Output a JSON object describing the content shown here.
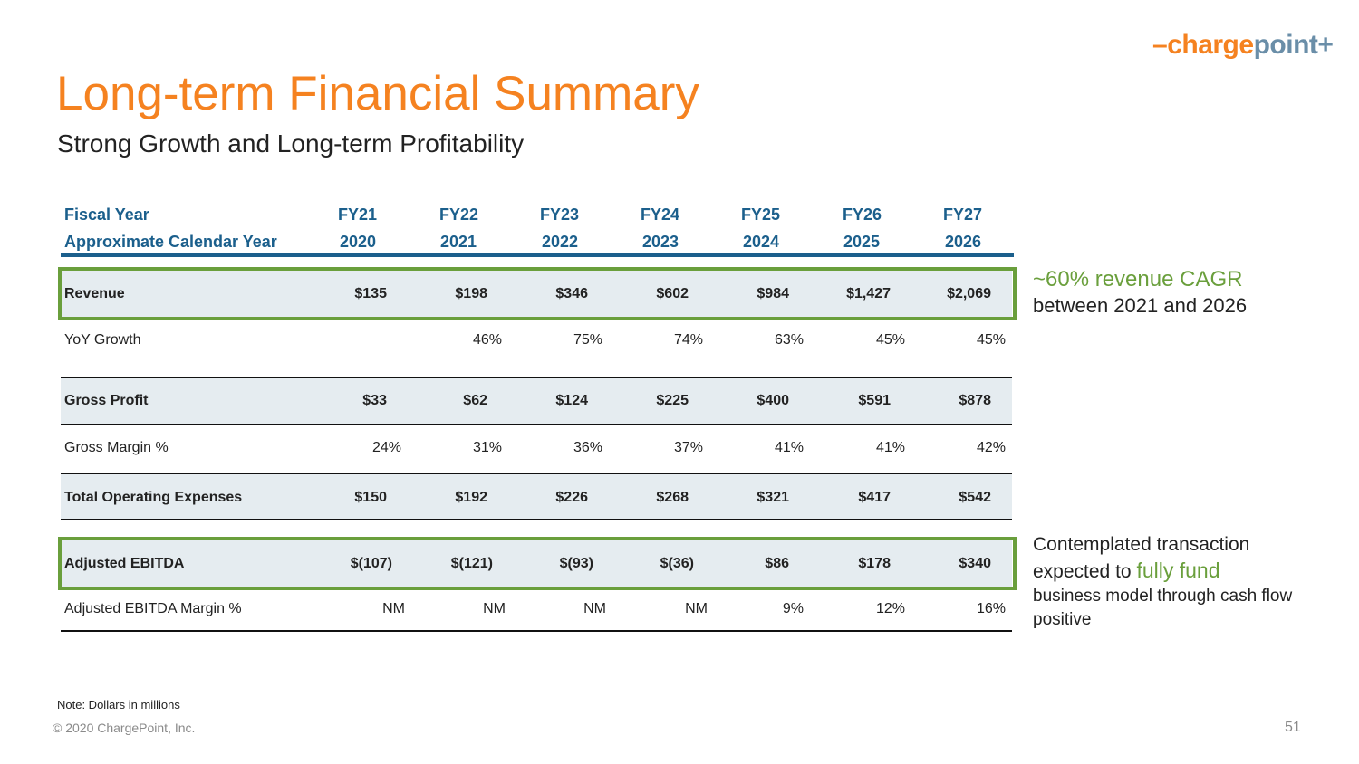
{
  "logo": {
    "dash": "–",
    "charge": "charge",
    "point": "poin",
    "plus": "t+"
  },
  "title": "Long-term Financial Summary",
  "subtitle": "Strong Growth and Long-term Profitability",
  "table": {
    "fiscal_year_label": "Fiscal Year",
    "calendar_year_label": "Approximate Calendar Year",
    "fiscal_years": [
      "FY21",
      "FY22",
      "FY23",
      "FY24",
      "FY25",
      "FY26",
      "FY27"
    ],
    "calendar_years": [
      "2020",
      "2021",
      "2022",
      "2023",
      "2024",
      "2025",
      "2026"
    ],
    "rows": [
      {
        "label": "Revenue",
        "values": [
          "$135",
          "$198",
          "$346",
          "$602",
          "$984",
          "$1,427",
          "$2,069"
        ]
      },
      {
        "label": "YoY Growth",
        "values": [
          "",
          "46%",
          "75%",
          "74%",
          "63%",
          "45%",
          "45%"
        ]
      },
      {
        "label": "Gross Profit",
        "values": [
          "$33",
          "$62",
          "$124",
          "$225",
          "$400",
          "$591",
          "$878"
        ]
      },
      {
        "label": "Gross Margin %",
        "values": [
          "24%",
          "31%",
          "36%",
          "37%",
          "41%",
          "41%",
          "42%"
        ]
      },
      {
        "label": "Total Operating Expenses",
        "values": [
          "$150",
          "$192",
          "$226",
          "$268",
          "$321",
          "$417",
          "$542"
        ]
      },
      {
        "label": "Adjusted EBITDA",
        "values": [
          "$(107)",
          "$(121)",
          "$(93)",
          "$(36)",
          "$86",
          "$178",
          "$340"
        ]
      },
      {
        "label": "Adjusted EBITDA Margin %",
        "values": [
          "NM",
          "NM",
          "NM",
          "NM",
          "9%",
          "12%",
          "16%"
        ]
      }
    ]
  },
  "callouts": {
    "revenue_highlight": "~60% revenue CAGR",
    "revenue_text": "between 2021 and 2026",
    "ebitda_text_1": "Contemplated transaction",
    "ebitda_text_2": "expected to",
    "ebitda_highlight": "fully fund",
    "ebitda_text_3": "business model through cash flow positive"
  },
  "footnote": "Note: Dollars in millions",
  "copyright": "© 2020 ChargePoint, Inc.",
  "page_number": "51",
  "colors": {
    "accent_orange": "#f58220",
    "header_blue": "#1b5f8c",
    "highlight_green": "#6a9f3c",
    "row_shade": "#e5ecf0"
  }
}
